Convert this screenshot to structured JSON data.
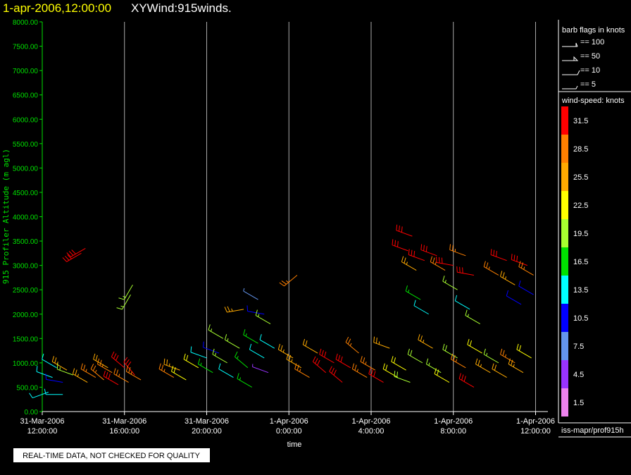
{
  "chart_data": {
    "type": "windbarb",
    "title": "1-apr-2006,12:00:00",
    "subtitle": "XYWind:915winds.",
    "ylabel": "915 Profiler Altitude (m agl)",
    "xlabel": "time",
    "note": "REAL-TIME DATA, NOT CHECKED FOR QUALITY",
    "source": "iss-mapr/prof915h",
    "xlim": [
      0,
      24.6
    ],
    "ylim": [
      0,
      8000
    ],
    "xticks": [
      {
        "value": 0,
        "label": [
          "31-Mar-2006",
          "12:00:00"
        ]
      },
      {
        "value": 4,
        "label": [
          "31-Mar-2006",
          "16:00:00"
        ]
      },
      {
        "value": 8,
        "label": [
          "31-Mar-2006",
          "20:00:00"
        ]
      },
      {
        "value": 12,
        "label": [
          "1-Apr-2006",
          "0:00:00"
        ]
      },
      {
        "value": 16,
        "label": [
          "1-Apr-2006",
          "4:00:00"
        ]
      },
      {
        "value": 20,
        "label": [
          "1-Apr-2006",
          "8:00:00"
        ]
      },
      {
        "value": 24,
        "label": [
          "1-Apr-2006",
          "12:00:00"
        ]
      }
    ],
    "yticks": [
      {
        "value": 0,
        "label": "0.00"
      },
      {
        "value": 500,
        "label": "500.00"
      },
      {
        "value": 1000,
        "label": "1000.00"
      },
      {
        "value": 1500,
        "label": "1500.00"
      },
      {
        "value": 2000,
        "label": "2000.00"
      },
      {
        "value": 2500,
        "label": "2500.00"
      },
      {
        "value": 3000,
        "label": "3000.00"
      },
      {
        "value": 3500,
        "label": "3500.00"
      },
      {
        "value": 4000,
        "label": "4000.00"
      },
      {
        "value": 4500,
        "label": "4500.00"
      },
      {
        "value": 5000,
        "label": "5000.00"
      },
      {
        "value": 5500,
        "label": "5500.00"
      },
      {
        "value": 6000,
        "label": "6000.00"
      },
      {
        "value": 6500,
        "label": "6500.00"
      },
      {
        "value": 7000,
        "label": "7000.00"
      },
      {
        "value": 7500,
        "label": "7500.00"
      },
      {
        "value": 8000,
        "label": "8000.00"
      }
    ],
    "grid": true,
    "legend": {
      "title": "barb flags in knots",
      "entries": [
        "== 100",
        "== 50",
        "== 10",
        "== 5"
      ]
    },
    "colorbar": {
      "title": "wind-speed: knots",
      "labels": [
        31.5,
        28.5,
        25.5,
        22.5,
        19.5,
        16.5,
        13.5,
        10.5,
        7.5,
        4.5,
        1.5
      ],
      "colors": [
        "#ff0000",
        "#ff8000",
        "#ffaa00",
        "#ffff00",
        "#a8ff30",
        "#00e000",
        "#00ffff",
        "#0000ff",
        "#6495ed",
        "#9933ff",
        "#ee82ee"
      ]
    },
    "barbs": [
      {
        "x": 0.3,
        "alt": 400,
        "speed": 13,
        "dir": 250
      },
      {
        "x": 0.5,
        "alt": 700,
        "speed": 12,
        "dir": 290
      },
      {
        "x": 0.7,
        "alt": 900,
        "speed": 14,
        "dir": 300
      },
      {
        "x": 1.0,
        "alt": 600,
        "speed": 11,
        "dir": 280
      },
      {
        "x": 1.2,
        "alt": 850,
        "speed": 25,
        "dir": 300
      },
      {
        "x": 1.5,
        "alt": 750,
        "speed": 18,
        "dir": 290
      },
      {
        "x": 1.0,
        "alt": 350,
        "speed": 13,
        "dir": 270
      },
      {
        "x": 1.9,
        "alt": 3250,
        "speed": 31,
        "dir": 240
      },
      {
        "x": 2.1,
        "alt": 3350,
        "speed": 31,
        "dir": 240
      },
      {
        "x": 2.2,
        "alt": 600,
        "speed": 26,
        "dir": 300
      },
      {
        "x": 2.6,
        "alt": 700,
        "speed": 27,
        "dir": 300
      },
      {
        "x": 3.0,
        "alt": 650,
        "speed": 28,
        "dir": 310
      },
      {
        "x": 3.4,
        "alt": 800,
        "speed": 29,
        "dir": 300
      },
      {
        "x": 3.7,
        "alt": 550,
        "speed": 31,
        "dir": 300
      },
      {
        "x": 4.0,
        "alt": 900,
        "speed": 30,
        "dir": 310
      },
      {
        "x": 4.2,
        "alt": 600,
        "speed": 28,
        "dir": 300
      },
      {
        "x": 4.5,
        "alt": 750,
        "speed": 31,
        "dir": 320
      },
      {
        "x": 4.8,
        "alt": 650,
        "speed": 29,
        "dir": 300
      },
      {
        "x": 3.2,
        "alt": 900,
        "speed": 24,
        "dir": 300
      },
      {
        "x": 4.3,
        "alt": 2400,
        "speed": 18,
        "dir": 210
      },
      {
        "x": 4.4,
        "alt": 2600,
        "speed": 19,
        "dir": 210
      },
      {
        "x": 6.4,
        "alt": 700,
        "speed": 29,
        "dir": 300
      },
      {
        "x": 6.7,
        "alt": 850,
        "speed": 26,
        "dir": 290
      },
      {
        "x": 7.0,
        "alt": 650,
        "speed": 22,
        "dir": 300
      },
      {
        "x": 7.6,
        "alt": 900,
        "speed": 21,
        "dir": 300
      },
      {
        "x": 8.0,
        "alt": 1100,
        "speed": 12,
        "dir": 290
      },
      {
        "x": 8.3,
        "alt": 800,
        "speed": 16,
        "dir": 300
      },
      {
        "x": 8.6,
        "alt": 1200,
        "speed": 10,
        "dir": 290
      },
      {
        "x": 9.0,
        "alt": 1000,
        "speed": 18,
        "dir": 300
      },
      {
        "x": 9.3,
        "alt": 700,
        "speed": 14,
        "dir": 300
      },
      {
        "x": 9.6,
        "alt": 1300,
        "speed": 19,
        "dir": 300
      },
      {
        "x": 10.0,
        "alt": 900,
        "speed": 16,
        "dir": 310
      },
      {
        "x": 10.2,
        "alt": 500,
        "speed": 15,
        "dir": 300
      },
      {
        "x": 10.5,
        "alt": 1400,
        "speed": 17,
        "dir": 300
      },
      {
        "x": 10.8,
        "alt": 1100,
        "speed": 14,
        "dir": 300
      },
      {
        "x": 11.0,
        "alt": 800,
        "speed": 5,
        "dir": 290
      },
      {
        "x": 9.8,
        "alt": 2100,
        "speed": 25,
        "dir": 260
      },
      {
        "x": 10.5,
        "alt": 2300,
        "speed": 8,
        "dir": 300
      },
      {
        "x": 10.8,
        "alt": 2000,
        "speed": 11,
        "dir": 280
      },
      {
        "x": 11.1,
        "alt": 1800,
        "speed": 19,
        "dir": 300
      },
      {
        "x": 11.3,
        "alt": 1300,
        "speed": 13,
        "dir": 300
      },
      {
        "x": 8.8,
        "alt": 1500,
        "speed": 19,
        "dir": 300
      },
      {
        "x": 12.4,
        "alt": 2800,
        "speed": 27,
        "dir": 230
      },
      {
        "x": 12.2,
        "alt": 1100,
        "speed": 26,
        "dir": 300
      },
      {
        "x": 12.6,
        "alt": 900,
        "speed": 25,
        "dir": 300
      },
      {
        "x": 13.0,
        "alt": 700,
        "speed": 28,
        "dir": 300
      },
      {
        "x": 13.4,
        "alt": 1200,
        "speed": 24,
        "dir": 300
      },
      {
        "x": 13.8,
        "alt": 800,
        "speed": 30,
        "dir": 310
      },
      {
        "x": 14.2,
        "alt": 1000,
        "speed": 31,
        "dir": 300
      },
      {
        "x": 14.6,
        "alt": 600,
        "speed": 30,
        "dir": 310
      },
      {
        "x": 15.0,
        "alt": 900,
        "speed": 31,
        "dir": 300
      },
      {
        "x": 15.4,
        "alt": 1200,
        "speed": 27,
        "dir": 310
      },
      {
        "x": 15.8,
        "alt": 700,
        "speed": 29,
        "dir": 300
      },
      {
        "x": 16.2,
        "alt": 850,
        "speed": 28,
        "dir": 300
      },
      {
        "x": 16.6,
        "alt": 600,
        "speed": 30,
        "dir": 300
      },
      {
        "x": 16.9,
        "alt": 1300,
        "speed": 26,
        "dir": 290
      },
      {
        "x": 17.3,
        "alt": 700,
        "speed": 22,
        "dir": 300
      },
      {
        "x": 17.7,
        "alt": 850,
        "speed": 21,
        "dir": 300
      },
      {
        "x": 17.9,
        "alt": 600,
        "speed": 20,
        "dir": 290
      },
      {
        "x": 17.8,
        "alt": 3300,
        "speed": 31,
        "dir": 290
      },
      {
        "x": 18.0,
        "alt": 3600,
        "speed": 30,
        "dir": 290
      },
      {
        "x": 18.2,
        "alt": 2900,
        "speed": 26,
        "dir": 300
      },
      {
        "x": 18.4,
        "alt": 2300,
        "speed": 16,
        "dir": 300
      },
      {
        "x": 18.6,
        "alt": 3100,
        "speed": 31,
        "dir": 290
      },
      {
        "x": 18.8,
        "alt": 2000,
        "speed": 13,
        "dir": 300
      },
      {
        "x": 19.2,
        "alt": 3200,
        "speed": 30,
        "dir": 290
      },
      {
        "x": 19.6,
        "alt": 2900,
        "speed": 27,
        "dir": 300
      },
      {
        "x": 20.0,
        "alt": 3000,
        "speed": 31,
        "dir": 280
      },
      {
        "x": 20.2,
        "alt": 2500,
        "speed": 19,
        "dir": 300
      },
      {
        "x": 20.6,
        "alt": 3200,
        "speed": 29,
        "dir": 290
      },
      {
        "x": 20.8,
        "alt": 2100,
        "speed": 12,
        "dir": 300
      },
      {
        "x": 21.0,
        "alt": 2800,
        "speed": 31,
        "dir": 280
      },
      {
        "x": 21.3,
        "alt": 1800,
        "speed": 18,
        "dir": 300
      },
      {
        "x": 18.5,
        "alt": 1000,
        "speed": 20,
        "dir": 300
      },
      {
        "x": 19.0,
        "alt": 1300,
        "speed": 25,
        "dir": 300
      },
      {
        "x": 19.4,
        "alt": 800,
        "speed": 19,
        "dir": 300
      },
      {
        "x": 19.8,
        "alt": 600,
        "speed": 22,
        "dir": 300
      },
      {
        "x": 20.2,
        "alt": 1100,
        "speed": 20,
        "dir": 300
      },
      {
        "x": 20.6,
        "alt": 900,
        "speed": 27,
        "dir": 300
      },
      {
        "x": 21.0,
        "alt": 500,
        "speed": 30,
        "dir": 300
      },
      {
        "x": 21.4,
        "alt": 1200,
        "speed": 21,
        "dir": 300
      },
      {
        "x": 21.8,
        "alt": 800,
        "speed": 26,
        "dir": 300
      },
      {
        "x": 22.2,
        "alt": 1000,
        "speed": 19,
        "dir": 300
      },
      {
        "x": 22.6,
        "alt": 700,
        "speed": 24,
        "dir": 300
      },
      {
        "x": 23.0,
        "alt": 1000,
        "speed": 28,
        "dir": 300
      },
      {
        "x": 23.4,
        "alt": 800,
        "speed": 26,
        "dir": 300
      },
      {
        "x": 23.8,
        "alt": 1100,
        "speed": 21,
        "dir": 300
      },
      {
        "x": 22.2,
        "alt": 2800,
        "speed": 28,
        "dir": 300
      },
      {
        "x": 22.6,
        "alt": 3100,
        "speed": 31,
        "dir": 290
      },
      {
        "x": 23.0,
        "alt": 2600,
        "speed": 26,
        "dir": 300
      },
      {
        "x": 23.3,
        "alt": 2200,
        "speed": 10,
        "dir": 300
      },
      {
        "x": 23.6,
        "alt": 3000,
        "speed": 30,
        "dir": 290
      },
      {
        "x": 23.9,
        "alt": 2400,
        "speed": 11,
        "dir": 300
      },
      {
        "x": 23.9,
        "alt": 2800,
        "speed": 27,
        "dir": 300
      }
    ]
  }
}
